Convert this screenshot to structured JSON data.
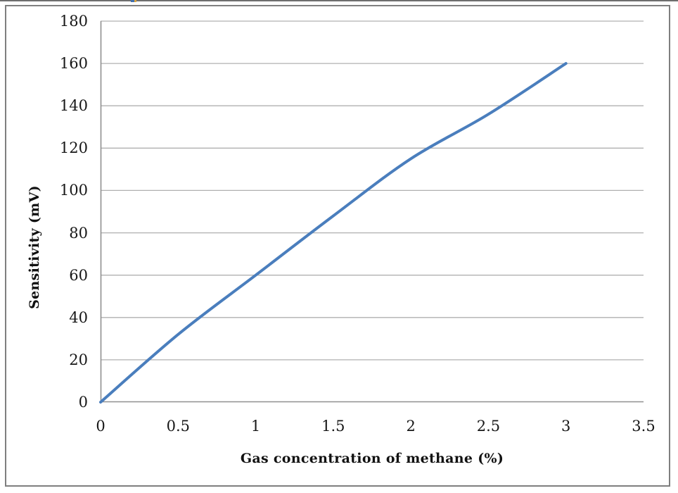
{
  "chart_data": {
    "type": "line",
    "title": "",
    "xlabel": "Gas concentration of methane (%)",
    "ylabel": "Sensitivity (mV)",
    "x": [
      0,
      0.5,
      1,
      1.5,
      2,
      2.5,
      3
    ],
    "series": [
      {
        "name": "Sensitivity",
        "values": [
          0,
          32,
          60,
          88,
          115,
          136,
          160
        ]
      }
    ],
    "xlim": [
      0,
      3.5
    ],
    "ylim": [
      0,
      180
    ],
    "x_ticks": [
      0,
      0.5,
      1,
      1.5,
      2,
      2.5,
      3,
      3.5
    ],
    "y_ticks": [
      0,
      20,
      40,
      60,
      80,
      100,
      120,
      140,
      160,
      180
    ],
    "grid": "horizontal",
    "legend": "none",
    "smoothed": true,
    "line_color": "#4A7EBD"
  },
  "colors": {
    "background": "#ffffff",
    "frame_border": "#7f7f7f",
    "gridline": "#b0b0b0",
    "axis": "#8f8f8f",
    "tick_text": "#171717"
  }
}
